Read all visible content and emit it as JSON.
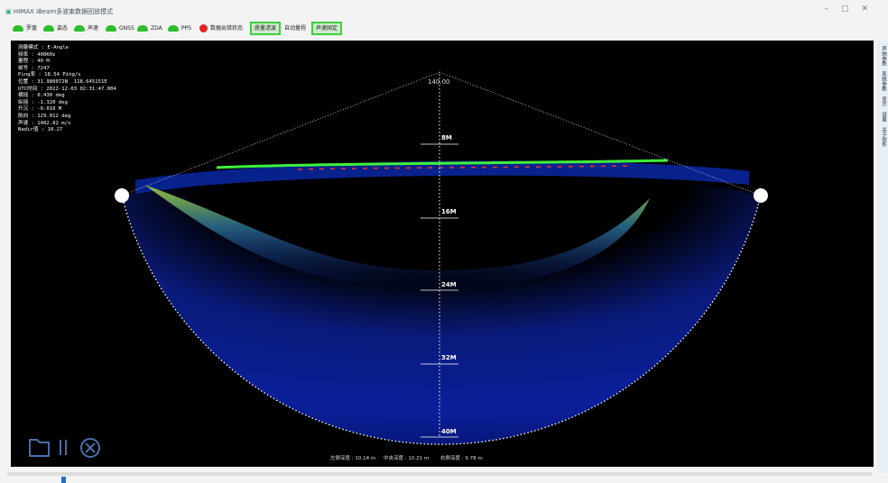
{
  "window": {
    "title": "HIMAX iBeam多波束数据回放模式"
  },
  "toolbar": {
    "items": [
      "罗盘",
      "姿态",
      "声速",
      "GNSS",
      "ZDA",
      "PPS",
      "数据出错状态",
      "质量滤波",
      "自动量程",
      "声速固定"
    ]
  },
  "info": {
    "lines": [
      "测量模式 : E-Angle",
      "频率 : 400KHz",
      "量程 : 40 M",
      "帧号 : 7247",
      "Ping率 : 18.54 Ping/s",
      "位置 : 31.980072N  118.645151E",
      "UTC时间 : 2022-12-03 02:31:47.004",
      "横摇 : 0.430 deg",
      "纵摇 : -1.320 deg",
      "升沉 : -0.010 M",
      "航向 : 129.012 deg",
      "声速 : 1482.82 m/s",
      "Nadir值 : 10.27"
    ]
  },
  "sonar": {
    "angle": "140.00",
    "depth_marks": [
      "8M",
      "16M",
      "24M",
      "32M",
      "40M"
    ]
  },
  "depths": {
    "left": "左侧深度 : 10.14 m",
    "center": "中央深度 : 10.21 m",
    "right": "右侧深度 : 9.78 m"
  },
  "sidebar": {
    "tabs": [
      "声纳参数",
      "系统参数",
      "显示",
      "设置",
      "关于软件"
    ]
  }
}
